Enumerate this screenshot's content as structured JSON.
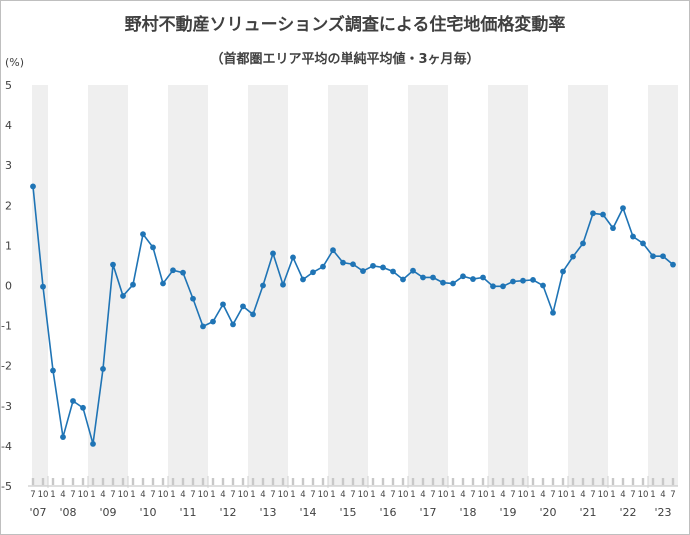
{
  "title": "野村不動産ソリューションズ調査による住宅地価格変動率",
  "subtitle": "（首都圏エリア平均の単純平均値・3ヶ月毎）",
  "unit": "(%)",
  "chart_data": {
    "type": "line",
    "ylim": [
      -5,
      5
    ],
    "yticks": [
      5,
      4,
      3,
      2,
      1,
      0,
      -1,
      -2,
      -3,
      -4,
      -5
    ],
    "grid": false,
    "shaded_alternate_years": true,
    "series_color": "#1f74b5",
    "months": [
      "7",
      "10",
      "1",
      "4",
      "7",
      "10",
      "1",
      "4",
      "7",
      "10",
      "1",
      "4",
      "7",
      "10",
      "1",
      "4",
      "7",
      "10",
      "1",
      "4",
      "7",
      "10",
      "1",
      "4",
      "7",
      "10",
      "1",
      "4",
      "7",
      "10",
      "1",
      "4",
      "7",
      "10",
      "1",
      "4",
      "7",
      "10",
      "1",
      "4",
      "7",
      "10",
      "1",
      "4",
      "7",
      "10",
      "1",
      "4",
      "7",
      "10",
      "1",
      "4",
      "7",
      "10",
      "1",
      "4",
      "7",
      "10",
      "1",
      "4",
      "7",
      "10",
      "1",
      "4",
      "7"
    ],
    "year_labels": [
      "'07",
      "'08",
      "'09",
      "'10",
      "'11",
      "'12",
      "'13",
      "'14",
      "'15",
      "'16",
      "'17",
      "'18",
      "'19",
      "'20",
      "'21",
      "'22",
      "'23"
    ],
    "values": [
      2.47,
      -0.03,
      -2.12,
      -3.78,
      -2.88,
      -3.05,
      -3.95,
      -2.08,
      0.52,
      -0.26,
      0.02,
      1.28,
      0.95,
      0.05,
      0.38,
      0.32,
      -0.33,
      -1.02,
      -0.9,
      -0.47,
      -0.97,
      -0.52,
      -0.72,
      0.0,
      0.8,
      0.02,
      0.7,
      0.15,
      0.33,
      0.47,
      0.88,
      0.57,
      0.53,
      0.36,
      0.49,
      0.45,
      0.35,
      0.15,
      0.37,
      0.2,
      0.2,
      0.07,
      0.05,
      0.23,
      0.16,
      0.2,
      -0.02,
      -0.02,
      0.1,
      0.12,
      0.14,
      0.0,
      -0.68,
      0.35,
      0.72,
      1.05,
      1.8,
      1.77,
      1.43,
      1.93,
      1.22,
      1.05,
      0.73,
      0.73,
      0.52
    ]
  }
}
